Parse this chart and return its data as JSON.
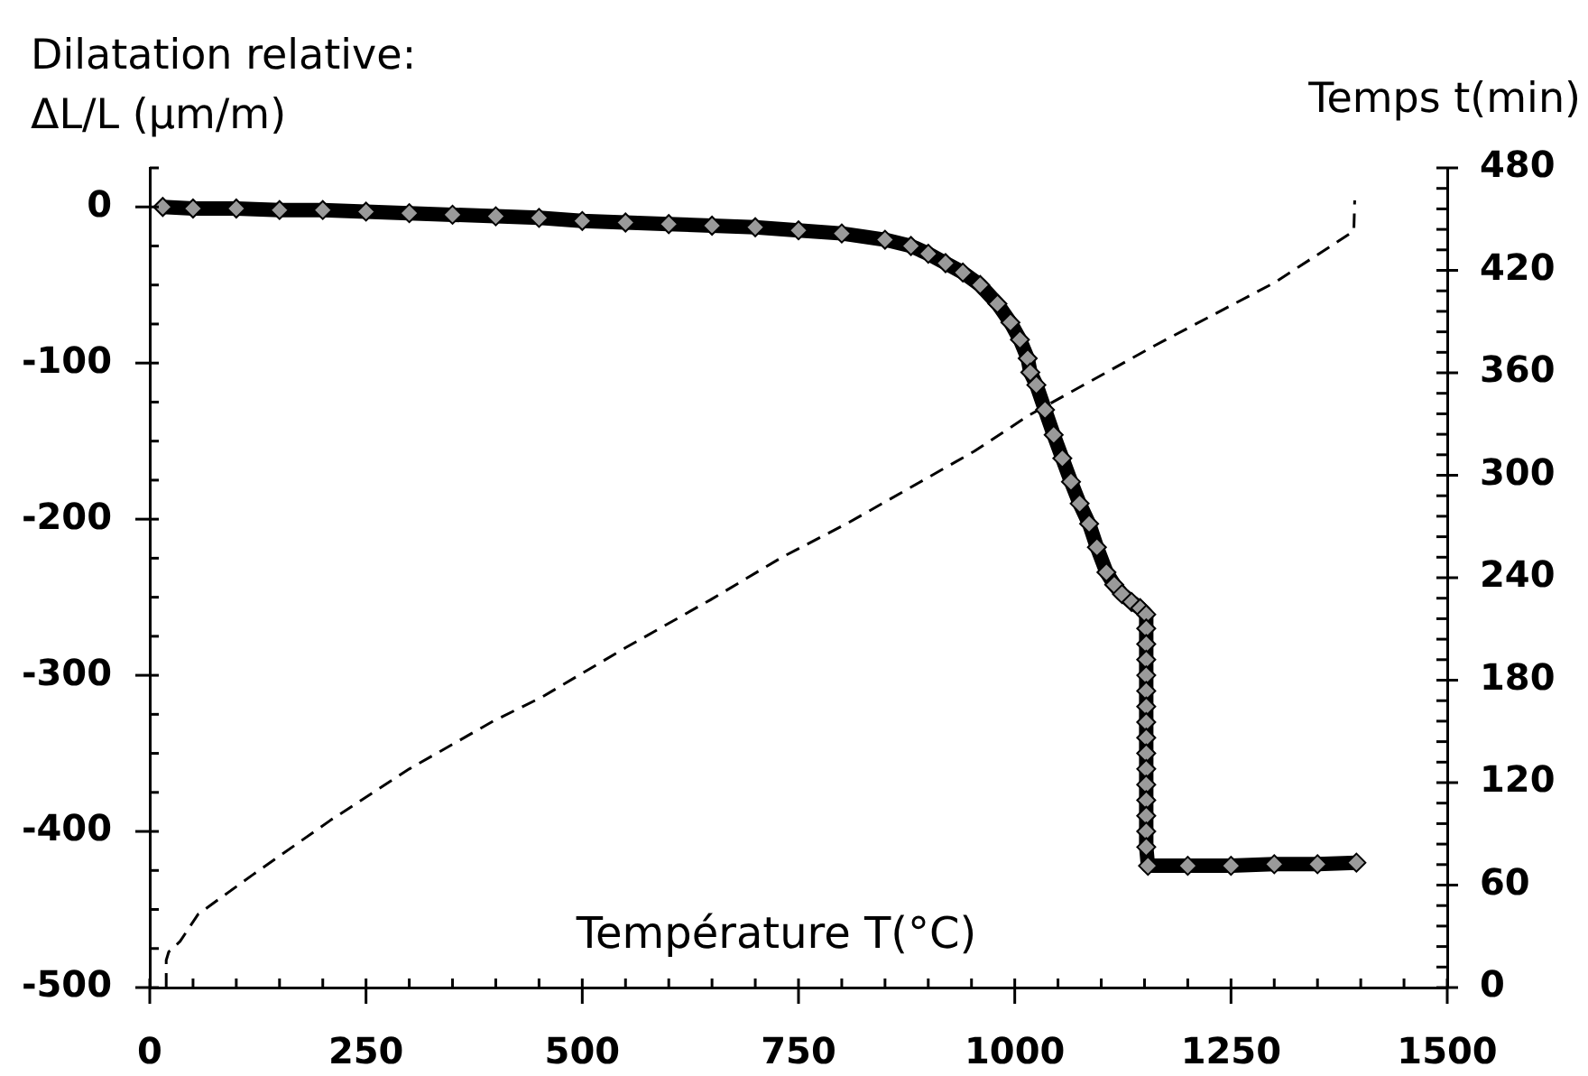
{
  "chart_data": {
    "type": "line",
    "xlabel": "Température T(°C)",
    "ylabel": "Dilatation relative:\nΔL/L (µm/m)",
    "y2label": "Temps t(min)",
    "xlim": [
      0,
      1500
    ],
    "xticks": [
      0,
      {
        "value": 50,
        "label": null
      },
      {
        "value": 100,
        "label": null
      },
      {
        "value": 150,
        "label": null
      },
      {
        "value": 200,
        "label": null
      },
      250,
      {
        "value": 300,
        "label": null
      },
      {
        "value": 350,
        "label": null
      },
      {
        "value": 400,
        "label": null
      },
      {
        "value": 450,
        "label": null
      },
      500,
      {
        "value": 550,
        "label": null
      },
      {
        "value": 600,
        "label": null
      },
      {
        "value": 650,
        "label": null
      },
      {
        "value": 700,
        "label": null
      },
      750,
      {
        "value": 800,
        "label": null
      },
      {
        "value": 850,
        "label": null
      },
      {
        "value": 900,
        "label": null
      },
      {
        "value": 950,
        "label": null
      },
      1000,
      {
        "value": 1050,
        "label": null
      },
      {
        "value": 1100,
        "label": null
      },
      {
        "value": 1150,
        "label": null
      },
      {
        "value": 1200,
        "label": null
      },
      1250,
      {
        "value": 1300,
        "label": null
      },
      {
        "value": 1350,
        "label": null
      },
      {
        "value": 1400,
        "label": null
      },
      {
        "value": 1450,
        "label": null
      },
      1500
    ],
    "ylim": [
      -500,
      25
    ],
    "yticks": [
      -500,
      {
        "value": -475,
        "label": null
      },
      {
        "value": -450,
        "label": null
      },
      {
        "value": -425,
        "label": null
      },
      -400,
      {
        "value": -375,
        "label": null
      },
      {
        "value": -350,
        "label": null
      },
      {
        "value": -325,
        "label": null
      },
      -300,
      {
        "value": -275,
        "label": null
      },
      {
        "value": -250,
        "label": null
      },
      {
        "value": -225,
        "label": null
      },
      -200,
      {
        "value": -175,
        "label": null
      },
      {
        "value": -150,
        "label": null
      },
      {
        "value": -125,
        "label": null
      },
      -100,
      {
        "value": -75,
        "label": null
      },
      {
        "value": -50,
        "label": null
      },
      {
        "value": -25,
        "label": null
      },
      0,
      {
        "value": 25,
        "label": null
      }
    ],
    "y2lim": [
      0,
      480
    ],
    "y2ticks": [
      0,
      {
        "value": 12,
        "label": null
      },
      {
        "value": 24,
        "label": null
      },
      {
        "value": 36,
        "label": null
      },
      {
        "value": 48,
        "label": null
      },
      60,
      {
        "value": 72,
        "label": null
      },
      {
        "value": 84,
        "label": null
      },
      {
        "value": 96,
        "label": null
      },
      {
        "value": 108,
        "label": null
      },
      120,
      {
        "value": 132,
        "label": null
      },
      {
        "value": 144,
        "label": null
      },
      {
        "value": 156,
        "label": null
      },
      {
        "value": 168,
        "label": null
      },
      180,
      {
        "value": 192,
        "label": null
      },
      {
        "value": 204,
        "label": null
      },
      {
        "value": 216,
        "label": null
      },
      {
        "value": 228,
        "label": null
      },
      240,
      {
        "value": 252,
        "label": null
      },
      {
        "value": 264,
        "label": null
      },
      {
        "value": 276,
        "label": null
      },
      {
        "value": 288,
        "label": null
      },
      300,
      {
        "value": 312,
        "label": null
      },
      {
        "value": 324,
        "label": null
      },
      {
        "value": 336,
        "label": null
      },
      {
        "value": 348,
        "label": null
      },
      360,
      {
        "value": 372,
        "label": null
      },
      {
        "value": 384,
        "label": null
      },
      {
        "value": 396,
        "label": null
      },
      {
        "value": 408,
        "label": null
      },
      420,
      {
        "value": 432,
        "label": null
      },
      {
        "value": 444,
        "label": null
      },
      {
        "value": 456,
        "label": null
      },
      {
        "value": 468,
        "label": null
      },
      480
    ],
    "series": [
      {
        "color": "#000000",
        "marker": "diamond",
        "line_style": "solid",
        "x": [
          15,
          50,
          100,
          150,
          200,
          250,
          300,
          350,
          400,
          450,
          500,
          550,
          600,
          650,
          700,
          750,
          800,
          850,
          880,
          900,
          920,
          940,
          960,
          980,
          995,
          1006,
          1015,
          1018,
          1025,
          1035,
          1045,
          1055,
          1065,
          1075,
          1086,
          1095,
          1106,
          1115,
          1124,
          1135,
          1145,
          1152,
          1152,
          1152,
          1152,
          1152,
          1152,
          1152,
          1152,
          1152,
          1152,
          1152,
          1152,
          1152,
          1152,
          1152,
          1152,
          1154,
          1200,
          1250,
          1300,
          1350,
          1395
        ],
        "values": [
          0,
          -1,
          -1,
          -2,
          -2,
          -3,
          -4,
          -5,
          -6,
          -7,
          -9,
          -10,
          -11,
          -12,
          -13,
          -15,
          -17,
          -21,
          -25,
          -30,
          -36,
          -42,
          -50,
          -62,
          -74,
          -85,
          -97,
          -106,
          -114,
          -130,
          -146,
          -161,
          -176,
          -190,
          -203,
          -218,
          -234,
          -242,
          -248,
          -253,
          -257,
          -261,
          -270,
          -280,
          -290,
          -300,
          -310,
          -320,
          -330,
          -340,
          -350,
          -360,
          -370,
          -380,
          -390,
          -400,
          -410,
          -422,
          -422,
          -422,
          -421,
          -421,
          -420
        ]
      },
      {
        "color": "#000000",
        "marker": "none",
        "line_style": "dashed",
        "axis": "y2",
        "x": [
          19,
          19,
          22,
          35,
          56,
          119,
          209,
          300,
          397,
          453,
          550,
          648,
          731,
          807,
          953,
          1016,
          1162,
          1301,
          1392,
          1393
        ],
        "values": [
          0,
          16,
          21,
          27,
          43,
          66,
          98,
          128,
          156,
          170,
          199,
          227,
          252,
          272,
          314,
          335,
          376,
          413,
          443,
          461
        ]
      }
    ]
  }
}
